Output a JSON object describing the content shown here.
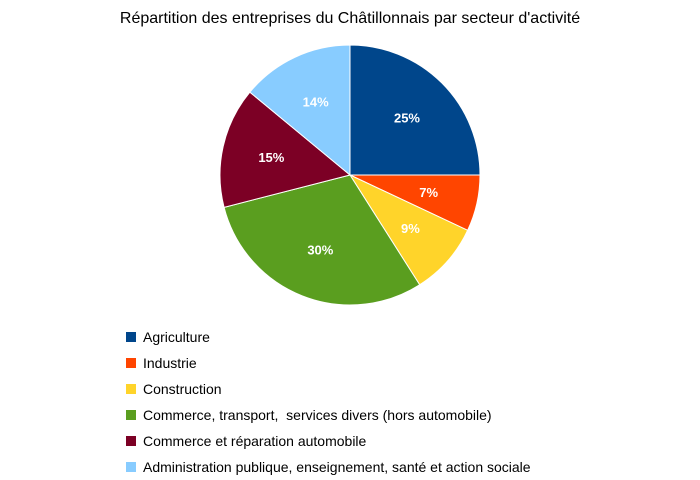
{
  "chart_data": {
    "type": "pie",
    "title": "Répartition des entreprises du Châtillonnais par secteur d'activité",
    "legend_position": "bottom-left",
    "slices": [
      {
        "name": "Agriculture",
        "value": 25,
        "label": "25%",
        "color": "#00468B"
      },
      {
        "name": "Industrie",
        "value": 7,
        "label": "7%",
        "color": "#FF4500"
      },
      {
        "name": "Construction",
        "value": 9,
        "label": "9%",
        "color": "#FFD42A"
      },
      {
        "name": "Commerce, transport,  services divers (hors automobile)",
        "value": 30,
        "label": "30%",
        "color": "#5A9E1F"
      },
      {
        "name": "Commerce et réparation automobile",
        "value": 15,
        "label": "15%",
        "color": "#7C0025"
      },
      {
        "name": "Administration publique, enseignement, santé et action sociale",
        "value": 14,
        "label": "14%",
        "color": "#88CCFF"
      }
    ]
  }
}
